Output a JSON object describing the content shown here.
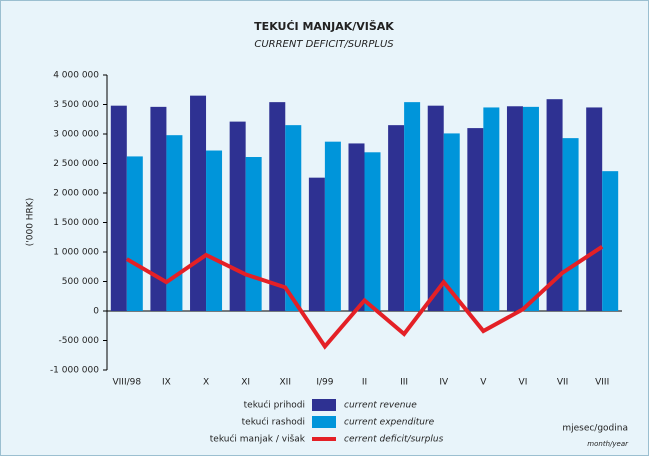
{
  "chart_data": {
    "type": "bar",
    "title": "TEKUĆI MANJAK/VIŠAK",
    "subtitle": "CURRENT DEFICIT/SURPLUS",
    "y_label": "('000 HRK)",
    "x_label": "mjesec/godina",
    "x_label_en": "month/year",
    "categories": [
      "VIII/98",
      "IX",
      "X",
      "XI",
      "XII",
      "I/99",
      "II",
      "III",
      "IV",
      "V",
      "VI",
      "VII",
      "VIII"
    ],
    "series": [
      {
        "name": "tekući prihodi",
        "name_en": "current revenue",
        "type": "bar",
        "color": "#2e3192",
        "values": [
          3480000,
          3460000,
          3650000,
          3210000,
          3540000,
          2260000,
          2840000,
          3150000,
          3480000,
          3100000,
          3470000,
          3590000,
          3450000
        ]
      },
      {
        "name": "tekući rashodi",
        "name_en": "current expenditure",
        "type": "bar",
        "color": "#0095da",
        "values": [
          2620000,
          2980000,
          2720000,
          2610000,
          3150000,
          2870000,
          2690000,
          3540000,
          3010000,
          3450000,
          3460000,
          2930000,
          2370000
        ]
      },
      {
        "name": "tekući manjak / višak",
        "name_en": "cerrent deficit/surplus",
        "type": "line",
        "color": "#e42026",
        "values": [
          880000,
          490000,
          950000,
          620000,
          400000,
          -600000,
          180000,
          -390000,
          490000,
          -340000,
          30000,
          650000,
          1090000
        ]
      }
    ],
    "ylim": [
      -1000000,
      4000000
    ],
    "yticks": [
      {
        "value": -1000000,
        "label": "-1 000 000"
      },
      {
        "value": -500000,
        "label": "-500 000"
      },
      0,
      {
        "value": 500000,
        "label": "500 000"
      },
      {
        "value": 1000000,
        "label": "1 000 000"
      },
      {
        "value": 1500000,
        "label": "1 500 000"
      },
      {
        "value": 2000000,
        "label": "2 000 000"
      },
      {
        "value": 2500000,
        "label": "2 500 000"
      },
      {
        "value": 3000000,
        "label": "3 000 000"
      },
      {
        "value": 3500000,
        "label": "3 500 000"
      },
      {
        "value": 4000000,
        "label": "4 000 000"
      }
    ]
  }
}
